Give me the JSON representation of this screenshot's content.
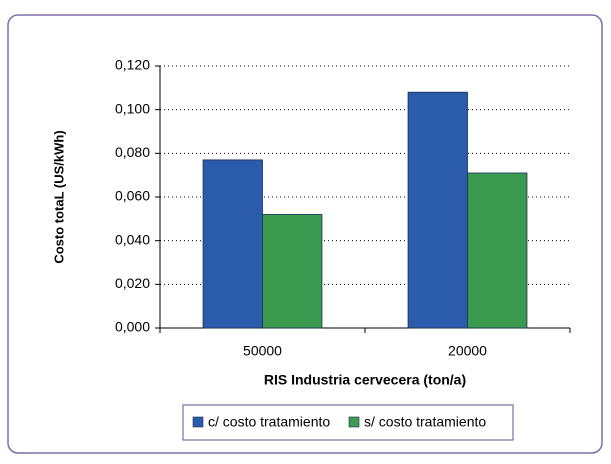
{
  "chart_data": {
    "type": "bar",
    "y_label": "Costo totaL (US/kWh)",
    "x_label": "RIS Industria cervecera (ton/a)",
    "categories": [
      "50000",
      "20000"
    ],
    "series": [
      {
        "name": "c/ costo tratamiento",
        "color": "#2b5cab",
        "values": [
          0.077,
          0.108
        ]
      },
      {
        "name": "s/ costo tratamiento",
        "color": "#3b9a4f",
        "values": [
          0.052,
          0.071
        ]
      }
    ],
    "ylim": [
      0,
      0.12
    ],
    "yticks": [
      {
        "value": 0,
        "label": "0,000"
      },
      {
        "value": 0.02,
        "label": "0,020"
      },
      {
        "value": 0.04,
        "label": "0,040"
      },
      {
        "value": 0.06,
        "label": "0,060"
      },
      {
        "value": 0.08,
        "label": "0,080"
      },
      {
        "value": 0.1,
        "label": "0,100"
      },
      {
        "value": 0.12,
        "label": "0,120"
      }
    ],
    "grid": true,
    "legend": "bottom"
  }
}
